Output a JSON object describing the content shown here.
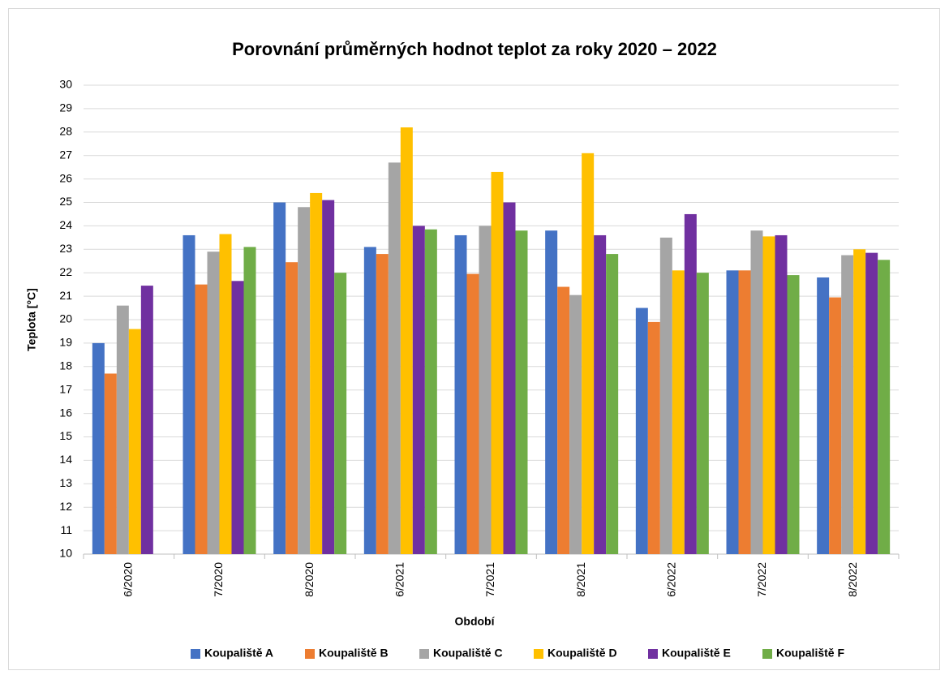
{
  "chart_data": {
    "type": "bar",
    "title": "Porovnání průměrných hodnot teplot za roky 2020 – 2022",
    "x_label": "Období",
    "y_label": "Teplota [°C]",
    "categories": [
      "6/2020",
      "7/2020",
      "8/2020",
      "6/2021",
      "7/2021",
      "8/2021",
      "6/2022",
      "7/2022",
      "8/2022"
    ],
    "series": [
      {
        "name": "Koupaliště A",
        "color": "#4472c4",
        "values": [
          19.0,
          23.6,
          25.0,
          23.1,
          23.6,
          23.8,
          20.5,
          22.1,
          21.8
        ]
      },
      {
        "name": "Koupaliště B",
        "color": "#ed7d31",
        "values": [
          17.7,
          21.5,
          22.45,
          22.8,
          21.95,
          21.4,
          19.9,
          22.1,
          20.95
        ]
      },
      {
        "name": "Koupaliště C",
        "color": "#a5a5a5",
        "values": [
          20.6,
          22.9,
          24.8,
          26.7,
          24.0,
          21.05,
          23.5,
          23.8,
          22.75
        ]
      },
      {
        "name": "Koupaliště D",
        "color": "#ffc000",
        "values": [
          19.6,
          23.65,
          25.4,
          28.2,
          26.3,
          27.1,
          22.1,
          23.55,
          23.0
        ]
      },
      {
        "name": "Koupaliště E",
        "color": "#7030a0",
        "values": [
          21.45,
          21.65,
          25.1,
          24.0,
          25.0,
          23.6,
          24.5,
          23.6,
          22.85
        ]
      },
      {
        "name": "Koupaliště F",
        "color": "#70ad47",
        "values": [
          null,
          23.1,
          22.0,
          23.85,
          23.8,
          22.8,
          22.0,
          21.9,
          22.55
        ]
      }
    ],
    "ylim": [
      10,
      30
    ],
    "yticks": [
      10,
      11,
      12,
      13,
      14,
      15,
      16,
      17,
      18,
      19,
      20,
      21,
      22,
      23,
      24,
      25,
      26,
      27,
      28,
      29,
      30
    ],
    "grid": true,
    "legend": "bottom"
  }
}
